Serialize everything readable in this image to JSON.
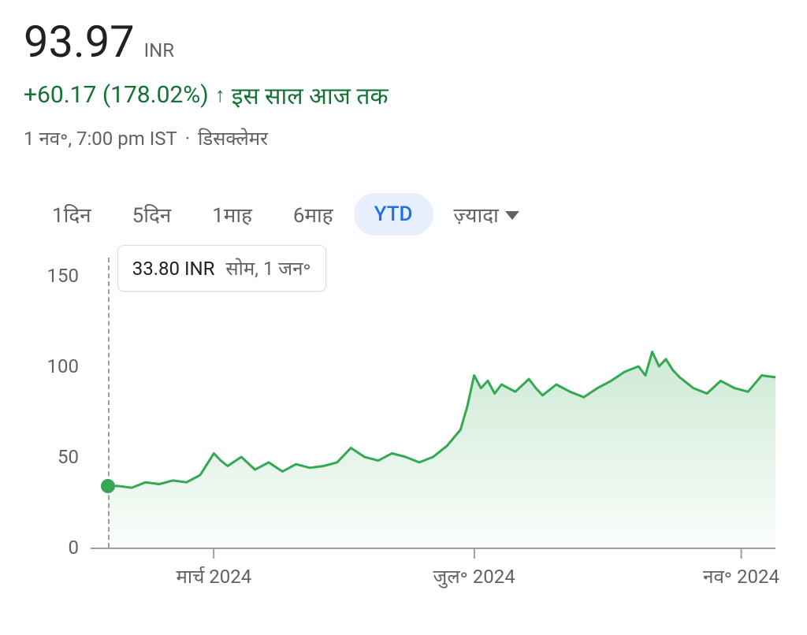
{
  "header": {
    "price": "93.97",
    "currency": "INR",
    "change": "+60.17 (178.02%)",
    "period_label": "इस साल आज तक",
    "timestamp": "1 नव॰, 7:00 pm IST",
    "disclaimer": "डिसक्लेमर",
    "change_color": "#137333"
  },
  "tabs": {
    "items": [
      {
        "label": "1दिन",
        "active": false
      },
      {
        "label": "5दिन",
        "active": false
      },
      {
        "label": "1माह",
        "active": false
      },
      {
        "label": "6माह",
        "active": false
      },
      {
        "label": "YTD",
        "active": true
      },
      {
        "label": "ज़्यादा",
        "active": false,
        "more": true
      }
    ]
  },
  "tooltip": {
    "price": "33.80 INR",
    "date": "सोम, 1 जन॰"
  },
  "chart": {
    "type": "line",
    "line_color": "#34a853",
    "fill_top_color": "rgba(52,168,83,0.25)",
    "fill_bottom_color": "rgba(52,168,83,0.02)",
    "line_width": 3,
    "dot_color": "#34a853",
    "dot_radius": 9,
    "background": "#ffffff",
    "hover_line_color": "#9e9e9e",
    "y": {
      "min": 0,
      "max": 160,
      "ticks": [
        0,
        50,
        100,
        150
      ],
      "label_fontsize": 24,
      "label_color": "#5f6368"
    },
    "x": {
      "min": 0,
      "max": 100,
      "ticks": [
        {
          "pos": 18,
          "label": "मार्च 2024"
        },
        {
          "pos": 56,
          "label": "जुल॰ 2024"
        },
        {
          "pos": 95,
          "label": "नव॰ 2024"
        }
      ],
      "label_fontsize": 24,
      "label_color": "#5f6368"
    },
    "hover_x": 2.5,
    "hover_y": 33.8,
    "series": [
      {
        "x": 2.5,
        "y": 33.8
      },
      {
        "x": 4,
        "y": 34
      },
      {
        "x": 6,
        "y": 33
      },
      {
        "x": 8,
        "y": 36
      },
      {
        "x": 10,
        "y": 35
      },
      {
        "x": 12,
        "y": 37
      },
      {
        "x": 14,
        "y": 36
      },
      {
        "x": 16,
        "y": 40
      },
      {
        "x": 18,
        "y": 52
      },
      {
        "x": 19,
        "y": 48
      },
      {
        "x": 20,
        "y": 45
      },
      {
        "x": 22,
        "y": 50
      },
      {
        "x": 24,
        "y": 43
      },
      {
        "x": 26,
        "y": 47
      },
      {
        "x": 28,
        "y": 42
      },
      {
        "x": 30,
        "y": 46
      },
      {
        "x": 32,
        "y": 44
      },
      {
        "x": 34,
        "y": 45
      },
      {
        "x": 36,
        "y": 47
      },
      {
        "x": 38,
        "y": 55
      },
      {
        "x": 40,
        "y": 50
      },
      {
        "x": 42,
        "y": 48
      },
      {
        "x": 44,
        "y": 52
      },
      {
        "x": 46,
        "y": 50
      },
      {
        "x": 48,
        "y": 47
      },
      {
        "x": 50,
        "y": 50
      },
      {
        "x": 52,
        "y": 56
      },
      {
        "x": 54,
        "y": 65
      },
      {
        "x": 55,
        "y": 78
      },
      {
        "x": 56,
        "y": 95
      },
      {
        "x": 57,
        "y": 88
      },
      {
        "x": 58,
        "y": 92
      },
      {
        "x": 59,
        "y": 85
      },
      {
        "x": 60,
        "y": 90
      },
      {
        "x": 62,
        "y": 86
      },
      {
        "x": 64,
        "y": 93
      },
      {
        "x": 65,
        "y": 88
      },
      {
        "x": 66,
        "y": 84
      },
      {
        "x": 68,
        "y": 90
      },
      {
        "x": 70,
        "y": 86
      },
      {
        "x": 72,
        "y": 83
      },
      {
        "x": 74,
        "y": 88
      },
      {
        "x": 76,
        "y": 92
      },
      {
        "x": 78,
        "y": 97
      },
      {
        "x": 80,
        "y": 100
      },
      {
        "x": 81,
        "y": 95
      },
      {
        "x": 82,
        "y": 108
      },
      {
        "x": 83,
        "y": 100
      },
      {
        "x": 84,
        "y": 104
      },
      {
        "x": 85,
        "y": 98
      },
      {
        "x": 86,
        "y": 94
      },
      {
        "x": 88,
        "y": 88
      },
      {
        "x": 90,
        "y": 85
      },
      {
        "x": 92,
        "y": 92
      },
      {
        "x": 94,
        "y": 88
      },
      {
        "x": 96,
        "y": 86
      },
      {
        "x": 98,
        "y": 95
      },
      {
        "x": 100,
        "y": 93.97
      }
    ]
  }
}
